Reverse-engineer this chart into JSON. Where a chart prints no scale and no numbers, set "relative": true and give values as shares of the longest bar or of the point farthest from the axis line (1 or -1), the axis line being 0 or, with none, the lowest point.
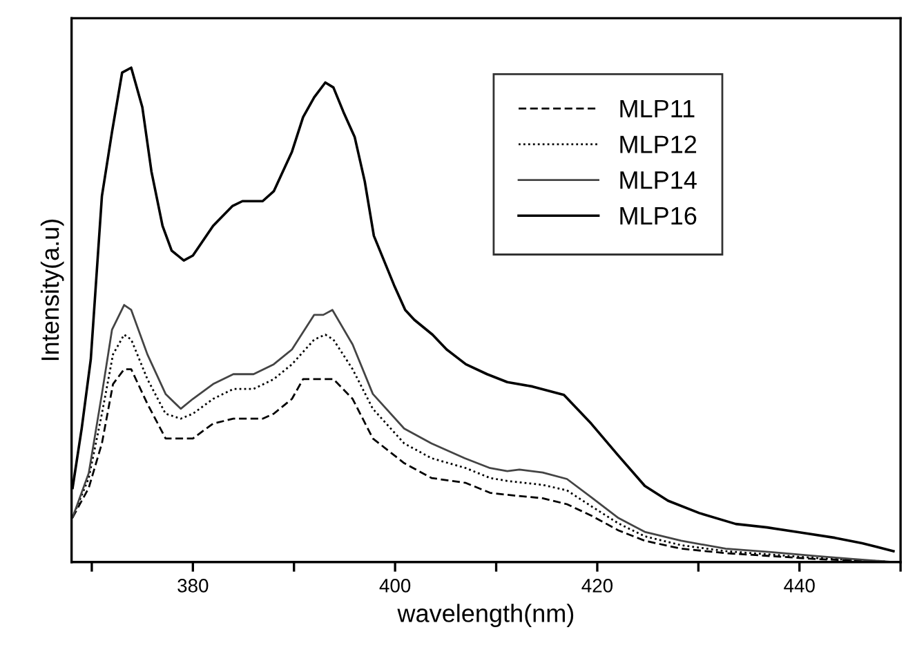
{
  "chart_data": {
    "type": "line",
    "relative": true,
    "xlabel": "wavelength(nm)",
    "ylabel": "Intensity(a.u)",
    "xlim": [
      368,
      450
    ],
    "xticks": [
      {
        "value": 370,
        "label": null
      },
      380,
      {
        "value": 390,
        "label": null
      },
      400,
      {
        "value": 410,
        "label": null
      },
      420,
      {
        "value": 430,
        "label": null
      },
      440,
      {
        "value": 450,
        "label": null
      }
    ],
    "legend": "top right",
    "grid": false,
    "series": [
      {
        "name": "MLP11",
        "color": "#000000",
        "line_style": "dashed",
        "x": [
          368.1,
          369.7,
          371.0,
          372.1,
          373.2,
          373.9,
          375.5,
          377.3,
          378.8,
          380.0,
          382.0,
          384.0,
          386.9,
          388.0,
          389.8,
          390.9,
          393.1,
          393.9,
          395.8,
          397.8,
          400.9,
          403.6,
          407.0,
          409.4,
          411.1,
          414.6,
          417.0,
          419.4,
          422.1,
          424.7,
          428.3,
          432.7,
          437.2,
          441.7,
          449.3
        ],
        "values": [
          0.09,
          0.15,
          0.24,
          0.36,
          0.39,
          0.39,
          0.32,
          0.25,
          0.25,
          0.25,
          0.28,
          0.29,
          0.29,
          0.3,
          0.33,
          0.37,
          0.37,
          0.37,
          0.33,
          0.25,
          0.2,
          0.17,
          0.16,
          0.14,
          0.136,
          0.129,
          0.117,
          0.094,
          0.064,
          0.043,
          0.027,
          0.018,
          0.012,
          0.006,
          0.0
        ]
      },
      {
        "name": "MLP12",
        "color": "#000000",
        "line_style": "dotted",
        "x": [
          368.1,
          369.7,
          371.0,
          372.1,
          373.2,
          373.9,
          375.5,
          377.3,
          378.8,
          380.0,
          382.0,
          384.0,
          386.0,
          388.0,
          389.8,
          392.0,
          393.1,
          393.9,
          395.8,
          397.8,
          400.9,
          403.6,
          407.0,
          409.4,
          411.1,
          414.6,
          417.0,
          419.4,
          422.1,
          424.7,
          428.3,
          432.7,
          437.2,
          441.7,
          449.3
        ],
        "values": [
          0.09,
          0.17,
          0.3,
          0.42,
          0.46,
          0.45,
          0.37,
          0.3,
          0.29,
          0.3,
          0.33,
          0.35,
          0.35,
          0.37,
          0.4,
          0.45,
          0.46,
          0.45,
          0.39,
          0.31,
          0.24,
          0.21,
          0.19,
          0.17,
          0.164,
          0.156,
          0.145,
          0.113,
          0.078,
          0.052,
          0.034,
          0.022,
          0.015,
          0.008,
          0.0
        ]
      },
      {
        "name": "MLP14",
        "color": "#444444",
        "line_style": "solid",
        "x": [
          368.1,
          369.7,
          371.0,
          372.0,
          373.2,
          373.9,
          375.5,
          377.3,
          378.8,
          380.0,
          382.0,
          384.0,
          386.0,
          388.0,
          389.8,
          392.0,
          392.9,
          393.8,
          395.8,
          397.8,
          400.9,
          403.6,
          406.9,
          409.4,
          411.1,
          412.3,
          414.6,
          417.0,
          419.4,
          422.1,
          424.7,
          428.3,
          432.7,
          437.2,
          441.7,
          445.3,
          449.3
        ],
        "values": [
          0.09,
          0.18,
          0.34,
          0.47,
          0.52,
          0.51,
          0.42,
          0.34,
          0.31,
          0.33,
          0.36,
          0.38,
          0.38,
          0.4,
          0.43,
          0.5,
          0.5,
          0.51,
          0.44,
          0.34,
          0.27,
          0.24,
          0.21,
          0.19,
          0.184,
          0.187,
          0.181,
          0.168,
          0.131,
          0.089,
          0.061,
          0.043,
          0.027,
          0.02,
          0.012,
          0.006,
          0.0
        ]
      },
      {
        "name": "MLP16",
        "color": "#000000",
        "line_style": "solid",
        "x": [
          368.1,
          369.0,
          369.9,
          371.0,
          372.0,
          373.0,
          373.9,
          375.0,
          375.9,
          377.0,
          377.9,
          379.1,
          380.0,
          382.0,
          383.9,
          384.9,
          385.8,
          386.9,
          388.0,
          389.8,
          390.9,
          392.0,
          393.1,
          393.9,
          394.9,
          396.0,
          397.0,
          397.9,
          399.9,
          401.0,
          401.9,
          403.7,
          405.1,
          407.0,
          409.1,
          411.1,
          413.6,
          416.7,
          419.4,
          422.1,
          424.7,
          427.0,
          430.1,
          433.7,
          436.8,
          440.0,
          443.5,
          446.2,
          449.3
        ],
        "values": [
          0.15,
          0.27,
          0.41,
          0.74,
          0.87,
          0.99,
          1.0,
          0.92,
          0.79,
          0.68,
          0.63,
          0.61,
          0.62,
          0.68,
          0.72,
          0.73,
          0.73,
          0.73,
          0.75,
          0.83,
          0.9,
          0.94,
          0.97,
          0.96,
          0.91,
          0.86,
          0.77,
          0.66,
          0.56,
          0.51,
          0.49,
          0.46,
          0.43,
          0.4,
          0.38,
          0.364,
          0.355,
          0.338,
          0.28,
          0.215,
          0.154,
          0.124,
          0.099,
          0.077,
          0.07,
          0.06,
          0.049,
          0.038,
          0.022
        ]
      }
    ]
  }
}
